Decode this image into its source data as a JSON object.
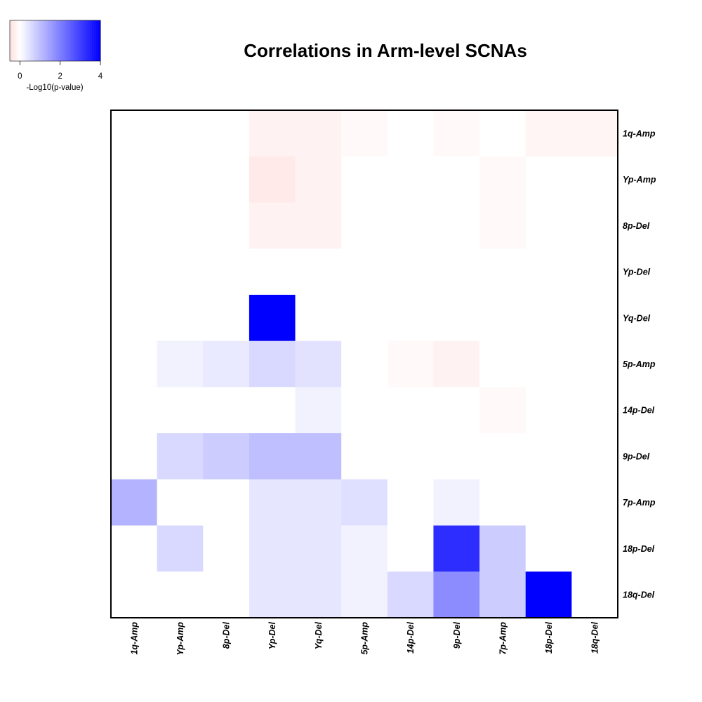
{
  "chart_data": {
    "type": "heatmap",
    "title": "Correlations in Arm-level SCNAs",
    "rows": [
      "1q-Amp",
      "Yp-Amp",
      "8p-Del",
      "Yp-Del",
      "Yq-Del",
      "5p-Amp",
      "14p-Del",
      "9p-Del",
      "7p-Amp",
      "18p-Del",
      "18q-Del"
    ],
    "columns": [
      "1q-Amp",
      "Yp-Amp",
      "8p-Del",
      "Yp-Del",
      "Yq-Del",
      "5p-Amp",
      "14p-Del",
      "9p-Del",
      "7p-Amp",
      "18p-Del",
      "18q-Del"
    ],
    "values": [
      [
        0,
        0,
        0,
        -0.2,
        -0.2,
        -0.1,
        0,
        -0.1,
        0,
        -0.15,
        -0.15
      ],
      [
        0,
        0,
        0,
        -0.35,
        -0.2,
        0,
        0,
        0,
        -0.1,
        0,
        0
      ],
      [
        0,
        0,
        0,
        -0.2,
        -0.2,
        0,
        0,
        0,
        -0.1,
        0,
        0
      ],
      [
        0,
        0,
        0,
        0,
        0,
        0,
        0,
        0,
        0,
        0,
        0
      ],
      [
        0,
        0,
        0,
        4.0,
        0,
        0,
        0,
        0,
        0,
        0,
        0
      ],
      [
        0,
        0.2,
        0.35,
        0.6,
        0.45,
        0,
        -0.1,
        -0.2,
        0,
        0,
        0
      ],
      [
        0,
        0,
        0,
        0,
        0.2,
        0,
        0,
        0,
        -0.1,
        0,
        0
      ],
      [
        0,
        0.6,
        0.8,
        1.0,
        1.0,
        0,
        0,
        0,
        0,
        0,
        0
      ],
      [
        1.2,
        0,
        0,
        0.4,
        0.4,
        0.5,
        0,
        0.2,
        0,
        0,
        0
      ],
      [
        0,
        0.6,
        0,
        0.4,
        0.4,
        0.2,
        0,
        3.3,
        0.8,
        0,
        0
      ],
      [
        0,
        0,
        0,
        0.4,
        0.4,
        0.2,
        0.6,
        1.8,
        0.8,
        4.0,
        0
      ]
    ],
    "color_scale": {
      "label": "-Log10(p-value)",
      "min": -0.5,
      "max": 4,
      "ticks": [
        "0",
        "2",
        "4"
      ],
      "low_color": "#ff0000",
      "mid_color": "#ffffff",
      "high_color": "#0000ff"
    }
  }
}
